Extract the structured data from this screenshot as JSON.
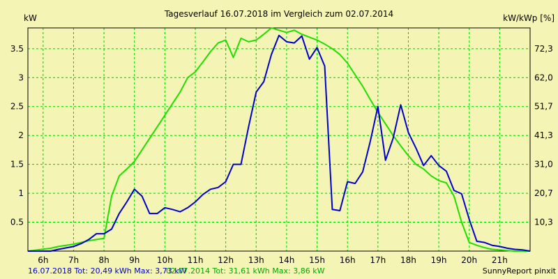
{
  "chart_data": {
    "type": "line",
    "title": "Tagesverlauf 16.07.2018 im Vergleich zum 02.07.2014",
    "ylabel_left": "kW",
    "ylabel_right": "kW/kWp [%]",
    "x_range": [
      5.5,
      22.0
    ],
    "y_range": [
      0,
      3.86
    ],
    "x_ticks": [
      {
        "v": 6,
        "label": "6h"
      },
      {
        "v": 7,
        "label": "7h"
      },
      {
        "v": 8,
        "label": "8h"
      },
      {
        "v": 9,
        "label": "9h"
      },
      {
        "v": 10,
        "label": "10h"
      },
      {
        "v": 11,
        "label": "11h"
      },
      {
        "v": 12,
        "label": "12h"
      },
      {
        "v": 13,
        "label": "13h"
      },
      {
        "v": 14,
        "label": "14h"
      },
      {
        "v": 15,
        "label": "15h"
      },
      {
        "v": 16,
        "label": "16h"
      },
      {
        "v": 17,
        "label": "17h"
      },
      {
        "v": 18,
        "label": "18h"
      },
      {
        "v": 19,
        "label": "19h"
      },
      {
        "v": 20,
        "label": "20h"
      },
      {
        "v": 21,
        "label": "21h"
      }
    ],
    "y_ticks_left": [
      {
        "v": 0.5,
        "label": "0.5"
      },
      {
        "v": 1,
        "label": "1"
      },
      {
        "v": 1.5,
        "label": "1.5"
      },
      {
        "v": 2,
        "label": "2"
      },
      {
        "v": 2.5,
        "label": "2.5"
      },
      {
        "v": 3,
        "label": "3"
      },
      {
        "v": 3.5,
        "label": "3.5"
      }
    ],
    "y_ticks_right": [
      {
        "v": 0.5,
        "label": "10,3"
      },
      {
        "v": 1,
        "label": "20,7"
      },
      {
        "v": 1.5,
        "label": "31,0"
      },
      {
        "v": 2,
        "label": "41,3"
      },
      {
        "v": 2.5,
        "label": "51,7"
      },
      {
        "v": 3,
        "label": "62,0"
      },
      {
        "v": 3.5,
        "label": "72,3"
      }
    ],
    "grid": true,
    "series": [
      {
        "name": "16.07.2018",
        "color": "#0000cc",
        "x": [
          5.5,
          6.25,
          6.5,
          7.0,
          7.25,
          7.5,
          7.75,
          8.0,
          8.25,
          8.5,
          8.75,
          9.0,
          9.25,
          9.5,
          9.75,
          10.0,
          10.25,
          10.5,
          10.75,
          11.0,
          11.25,
          11.5,
          11.75,
          12.0,
          12.25,
          12.5,
          12.75,
          13.0,
          13.25,
          13.5,
          13.75,
          14.0,
          14.25,
          14.5,
          14.75,
          15.0,
          15.25,
          15.5,
          15.75,
          16.0,
          16.25,
          16.5,
          16.75,
          17.0,
          17.25,
          17.5,
          17.75,
          18.0,
          18.25,
          18.5,
          18.75,
          19.0,
          19.25,
          19.5,
          19.75,
          20.0,
          20.25,
          20.5,
          20.75,
          21.0,
          21.25,
          21.5,
          21.75,
          22.0
        ],
        "y": [
          0.0,
          0.0,
          0.03,
          0.08,
          0.13,
          0.2,
          0.3,
          0.3,
          0.38,
          0.65,
          0.85,
          1.07,
          0.95,
          0.65,
          0.65,
          0.75,
          0.72,
          0.68,
          0.75,
          0.85,
          0.98,
          1.07,
          1.1,
          1.2,
          1.5,
          1.5,
          2.15,
          2.75,
          2.93,
          3.4,
          3.73,
          3.62,
          3.6,
          3.72,
          3.32,
          3.52,
          3.2,
          0.72,
          0.7,
          1.2,
          1.17,
          1.37,
          1.9,
          2.5,
          1.57,
          1.95,
          2.53,
          2.05,
          1.78,
          1.48,
          1.65,
          1.48,
          1.38,
          1.05,
          0.99,
          0.55,
          0.17,
          0.15,
          0.1,
          0.08,
          0.05,
          0.03,
          0.02,
          0.0
        ]
      },
      {
        "name": "02.07.2014",
        "color": "#22dd00",
        "x": [
          5.5,
          6.25,
          6.5,
          7.0,
          7.25,
          7.5,
          7.75,
          8.0,
          8.25,
          8.5,
          8.75,
          9.0,
          9.25,
          9.5,
          9.75,
          10.0,
          10.25,
          10.5,
          10.75,
          11.0,
          11.25,
          11.5,
          11.75,
          12.0,
          12.25,
          12.5,
          12.75,
          13.0,
          13.25,
          13.5,
          13.75,
          14.0,
          14.25,
          14.5,
          14.75,
          15.0,
          15.25,
          15.5,
          15.75,
          16.0,
          16.25,
          16.5,
          16.75,
          17.0,
          17.25,
          17.5,
          17.75,
          18.0,
          18.25,
          18.5,
          18.75,
          19.0,
          19.25,
          19.5,
          19.75,
          20.0,
          20.25,
          20.5,
          20.75,
          21.0,
          21.25,
          21.5,
          21.75,
          22.0
        ],
        "y": [
          0.0,
          0.05,
          0.08,
          0.12,
          0.15,
          0.18,
          0.2,
          0.22,
          0.95,
          1.3,
          1.42,
          1.55,
          1.75,
          1.95,
          2.15,
          2.35,
          2.55,
          2.75,
          3.0,
          3.1,
          3.27,
          3.45,
          3.6,
          3.65,
          3.35,
          3.68,
          3.62,
          3.65,
          3.75,
          3.86,
          3.82,
          3.78,
          3.82,
          3.75,
          3.7,
          3.65,
          3.58,
          3.5,
          3.4,
          3.25,
          3.05,
          2.85,
          2.62,
          2.4,
          2.2,
          2.0,
          1.82,
          1.65,
          1.5,
          1.42,
          1.3,
          1.22,
          1.18,
          0.95,
          0.5,
          0.15,
          0.1,
          0.06,
          0.03,
          0.02,
          0.01,
          0.0,
          0.0,
          0.0
        ]
      }
    ]
  },
  "footer": {
    "blue_text": "16.07.2018 Tot: 20,49 kWh Max: 3,73 kW",
    "green_text": "02.07.2014 Tot: 31,61 kWh Max: 3,86 kW",
    "credit": "SunnyReport pinxit"
  }
}
